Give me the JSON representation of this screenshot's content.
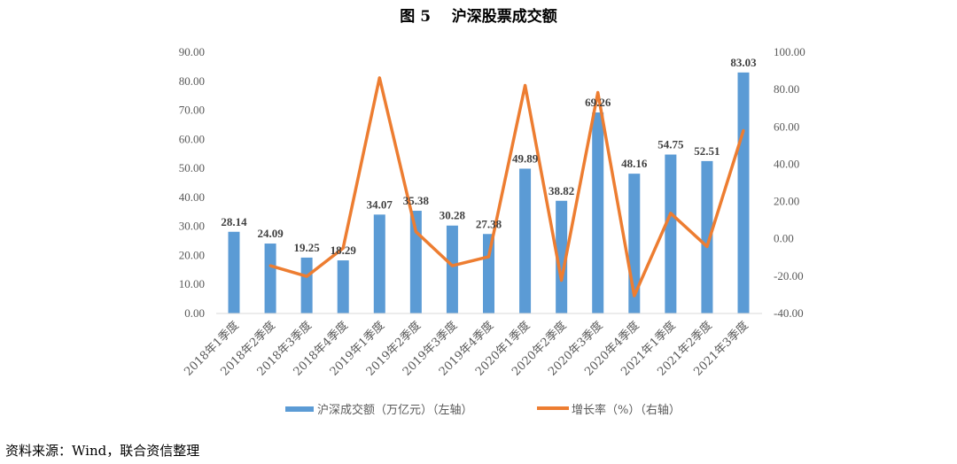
{
  "title": "图 5    沪深股票成交额",
  "source": "资料来源：Wind，联合资信整理",
  "chart_data": {
    "type": "bar+line",
    "title": "图 5    沪深股票成交额",
    "categories": [
      "2018年1季度",
      "2018年2季度",
      "2018年3季度",
      "2018年4季度",
      "2019年1季度",
      "2019年2季度",
      "2019年3季度",
      "2019年4季度",
      "2020年1季度",
      "2020年2季度",
      "2020年3季度",
      "2020年4季度",
      "2021年1季度",
      "2021年2季度",
      "2021年3季度"
    ],
    "series": [
      {
        "name": "沪深成交额（万亿元）（左轴）",
        "type": "bar",
        "axis": "left",
        "color": "#5B9BD5",
        "values": [
          28.14,
          24.09,
          19.25,
          18.29,
          34.07,
          35.38,
          30.28,
          27.38,
          49.89,
          38.82,
          69.26,
          48.16,
          54.75,
          52.51,
          83.03
        ],
        "labels": [
          "28.14",
          "24.09",
          "19.25",
          "18.29",
          "34.07",
          "35.38",
          "30.28",
          "27.38",
          "49.89",
          "38.82",
          "69.26",
          "48.16",
          "54.75",
          "52.51",
          "83.03"
        ]
      },
      {
        "name": "增长率（%）（右轴）",
        "type": "line",
        "axis": "right",
        "color": "#ED7D31",
        "values": [
          null,
          -14.4,
          -20.1,
          -5.0,
          86.3,
          3.8,
          -14.4,
          -9.6,
          82.2,
          -22.2,
          78.4,
          -30.5,
          13.7,
          -4.1,
          58.1
        ]
      }
    ],
    "left_axis": {
      "range": [
        0,
        90
      ],
      "ticks": [
        "0.00",
        "10.00",
        "20.00",
        "30.00",
        "40.00",
        "50.00",
        "60.00",
        "70.00",
        "80.00",
        "90.00"
      ]
    },
    "right_axis": {
      "range": [
        -40,
        100
      ],
      "ticks": [
        "-40.00",
        "-20.00",
        "0.00",
        "20.00",
        "40.00",
        "60.00",
        "80.00",
        "100.00"
      ]
    },
    "grid": false,
    "legend": "bottom"
  }
}
